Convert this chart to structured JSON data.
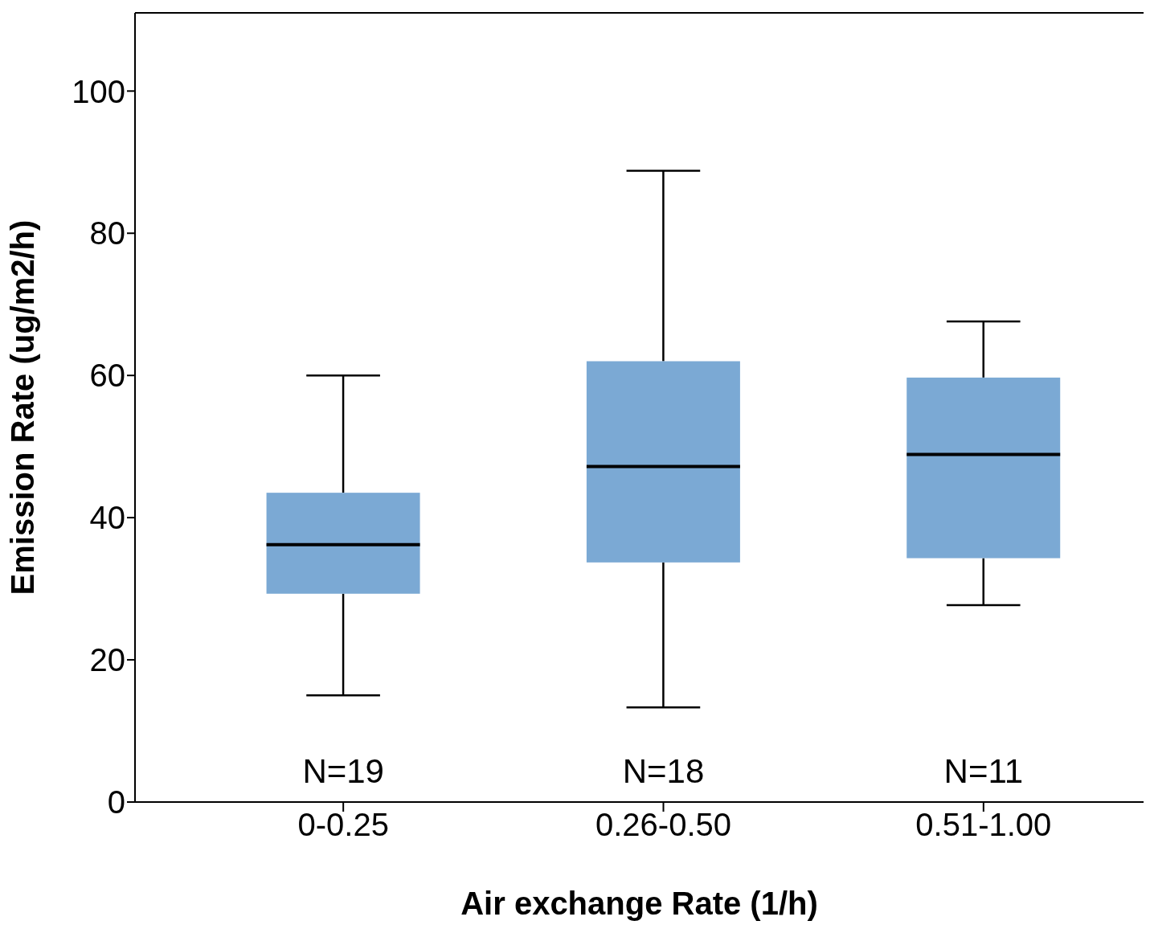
{
  "chart_data": {
    "type": "box",
    "xlabel": "Air exchange Rate (1/h)",
    "ylabel": "Emission Rate (ug/m2/h)",
    "categories": [
      "0-0.25",
      "0.26-0.50",
      "0.51-1.00"
    ],
    "color": "#7ba9d4",
    "boxes": [
      {
        "low": 15,
        "q1": 29.3,
        "median": 36.2,
        "q3": 43.5,
        "high": 60
      },
      {
        "low": 13.3,
        "q1": 33.7,
        "median": 47.2,
        "q3": 62,
        "high": 88.8
      },
      {
        "low": 27.7,
        "q1": 34.3,
        "median": 48.9,
        "q3": 59.7,
        "high": 67.6
      }
    ],
    "ylim": [
      0,
      111
    ],
    "yticks": [
      0,
      20,
      40,
      60,
      80,
      100
    ],
    "annotations": [
      "N=19",
      "N=18",
      "N=11"
    ]
  }
}
